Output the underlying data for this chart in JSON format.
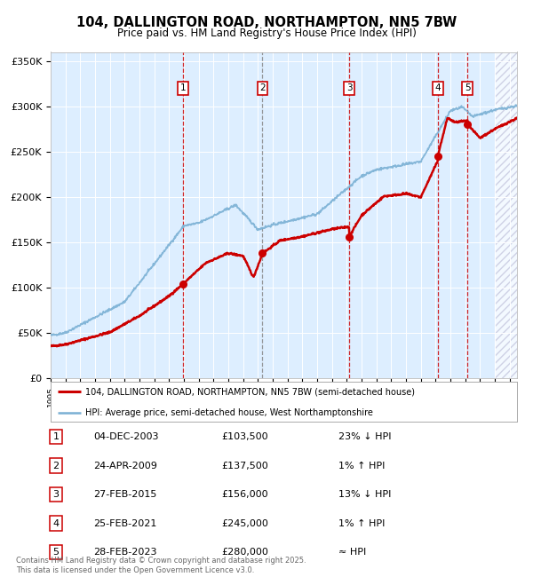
{
  "title": "104, DALLINGTON ROAD, NORTHAMPTON, NN5 7BW",
  "subtitle": "Price paid vs. HM Land Registry's House Price Index (HPI)",
  "footer": "Contains HM Land Registry data © Crown copyright and database right 2025.\nThis data is licensed under the Open Government Licence v3.0.",
  "legend_line1": "104, DALLINGTON ROAD, NORTHAMPTON, NN5 7BW (semi-detached house)",
  "legend_line2": "HPI: Average price, semi-detached house, West Northamptonshire",
  "sale_color": "#cc0000",
  "hpi_color": "#7ab0d4",
  "background_color": "#ddeeff",
  "ylim": [
    0,
    360000
  ],
  "xlim_start": 1995.0,
  "xlim_end": 2026.5,
  "sales": [
    {
      "num": 1,
      "year": 2003.92,
      "price": 103500,
      "vline_color": "#cc0000"
    },
    {
      "num": 2,
      "year": 2009.31,
      "price": 137500,
      "vline_color": "#888888"
    },
    {
      "num": 3,
      "year": 2015.16,
      "price": 156000,
      "vline_color": "#cc0000"
    },
    {
      "num": 4,
      "year": 2021.15,
      "price": 245000,
      "vline_color": "#cc0000"
    },
    {
      "num": 5,
      "year": 2023.16,
      "price": 280000,
      "vline_color": "#cc0000"
    }
  ],
  "table_rows": [
    [
      "1",
      "04-DEC-2003",
      "£103,500",
      "23% ↓ HPI"
    ],
    [
      "2",
      "24-APR-2009",
      "£137,500",
      "1% ↑ HPI"
    ],
    [
      "3",
      "27-FEB-2015",
      "£156,000",
      "13% ↓ HPI"
    ],
    [
      "4",
      "25-FEB-2021",
      "£245,000",
      "1% ↑ HPI"
    ],
    [
      "5",
      "28-FEB-2023",
      "£280,000",
      "≈ HPI"
    ]
  ],
  "yticks": [
    0,
    50000,
    100000,
    150000,
    200000,
    250000,
    300000,
    350000
  ],
  "ytick_labels": [
    "£0",
    "£50K",
    "£100K",
    "£150K",
    "£200K",
    "£250K",
    "£300K",
    "£350K"
  ]
}
